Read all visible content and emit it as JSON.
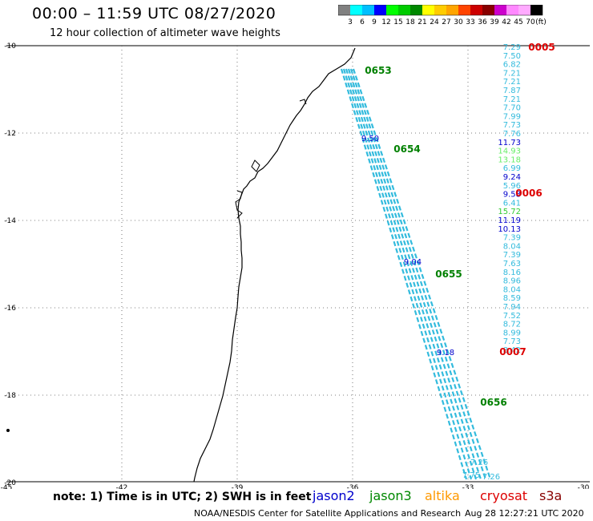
{
  "title": "00:00 – 11:59 UTC 08/27/2020",
  "subtitle": "12 hour collection of altimeter wave heights",
  "legend": {
    "ticks": [
      "3",
      "6",
      "9",
      "12",
      "15",
      "18",
      "21",
      "24",
      "27",
      "30",
      "33",
      "36",
      "39",
      "42",
      "45",
      "70"
    ],
    "unit": "(ft)",
    "colors": [
      "#808080",
      "#00ffff",
      "#00bfff",
      "#0000ff",
      "#00ff00",
      "#00cc00",
      "#008800",
      "#ffff00",
      "#ffcc00",
      "#ffa500",
      "#ff4400",
      "#cc0000",
      "#880000",
      "#cc00cc",
      "#ff88ff",
      "#ffaaff",
      "#000000"
    ]
  },
  "axes": {
    "lat_labels": [
      "-10",
      "-12",
      "-14",
      "-16",
      "-18",
      "-20"
    ],
    "lon_labels": [
      "-45",
      "-42",
      "-39",
      "-36",
      "-33",
      "-30"
    ]
  },
  "pass_labels": [
    {
      "text": "0653",
      "color": "#008000"
    },
    {
      "text": "0654",
      "color": "#008000"
    },
    {
      "text": "0655",
      "color": "#008000"
    },
    {
      "text": "0656",
      "color": "#008000"
    },
    {
      "text": "0005",
      "color": "#dd0000"
    },
    {
      "text": "0006",
      "color": "#dd0000"
    },
    {
      "text": "0007",
      "color": "#dd0000"
    }
  ],
  "swh_values": [
    {
      "text": "7.29",
      "color": "#33bbdd"
    },
    {
      "text": "7.50",
      "color": "#33bbdd"
    },
    {
      "text": "6.82",
      "color": "#33bbdd"
    },
    {
      "text": "7.21",
      "color": "#33bbdd"
    },
    {
      "text": "7.21",
      "color": "#33bbdd"
    },
    {
      "text": "7.87",
      "color": "#33bbdd"
    },
    {
      "text": "7.21",
      "color": "#33bbdd"
    },
    {
      "text": "7.70",
      "color": "#33bbdd"
    },
    {
      "text": "7.99",
      "color": "#33bbdd"
    },
    {
      "text": "7.73",
      "color": "#33bbdd"
    },
    {
      "text": "7.76",
      "color": "#33bbdd"
    },
    {
      "text": "11.73",
      "color": "#0000cc"
    },
    {
      "text": "14.93",
      "color": "#66ee66"
    },
    {
      "text": "13.18",
      "color": "#66ee66"
    },
    {
      "text": "6.99",
      "color": "#33bbdd"
    },
    {
      "text": "9.24",
      "color": "#0000cc"
    },
    {
      "text": "5.96",
      "color": "#33bbdd"
    },
    {
      "text": "9.58",
      "color": "#0000cc"
    },
    {
      "text": "6.41",
      "color": "#33bbdd"
    },
    {
      "text": "15.72",
      "color": "#33cc33"
    },
    {
      "text": "11.19",
      "color": "#0000cc"
    },
    {
      "text": "10.13",
      "color": "#0000cc"
    },
    {
      "text": "7.39",
      "color": "#33bbdd"
    },
    {
      "text": "8.04",
      "color": "#33bbdd"
    },
    {
      "text": "7.39",
      "color": "#33bbdd"
    },
    {
      "text": "7.63",
      "color": "#33bbdd"
    },
    {
      "text": "8.16",
      "color": "#33bbdd"
    },
    {
      "text": "8.96",
      "color": "#33bbdd"
    },
    {
      "text": "8.04",
      "color": "#33bbdd"
    },
    {
      "text": "8.59",
      "color": "#33bbdd"
    },
    {
      "text": "7.94",
      "color": "#33bbdd"
    },
    {
      "text": "7.52",
      "color": "#33bbdd"
    },
    {
      "text": "8.72",
      "color": "#33bbdd"
    },
    {
      "text": "8.99",
      "color": "#33bbdd"
    },
    {
      "text": "7.73",
      "color": "#33bbdd"
    },
    {
      "text": "8.42",
      "color": "#33bbdd"
    }
  ],
  "extra_values": [
    {
      "text": "9.50",
      "color": "#0000cc"
    },
    {
      "text": "9.04",
      "color": "#0000cc"
    },
    {
      "text": "9.18",
      "color": "#0000cc"
    },
    {
      "text": "7.26",
      "color": "#33bbdd"
    },
    {
      "text": "7.75",
      "color": "#33bbdd"
    },
    {
      "text": "7.26",
      "color": "#33bbdd"
    }
  ],
  "note": "note: 1) Time is in UTC; 2) SWH is in feet",
  "satellites": [
    {
      "name": "jason2",
      "color": "#0000cc"
    },
    {
      "name": "jason3",
      "color": "#008800"
    },
    {
      "name": "altika",
      "color": "#ff9900"
    },
    {
      "name": "cryosat",
      "color": "#dd0000"
    },
    {
      "name": "s3a",
      "color": "#880000"
    }
  ],
  "credit": "NOAA/NESDIS Center for Satellite Applications and Research",
  "timestamp": "Aug 28 12:27:21 UTC 2020"
}
